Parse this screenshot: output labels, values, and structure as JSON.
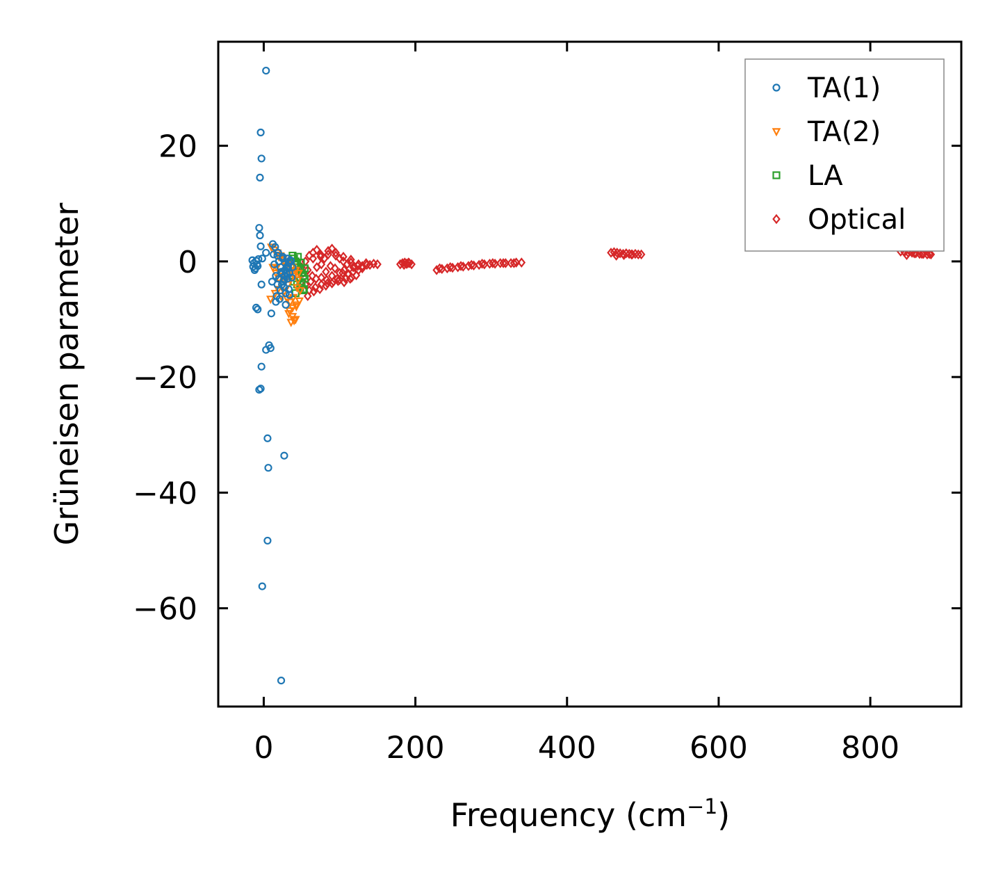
{
  "chart_data": {
    "type": "scatter",
    "title": "",
    "xlabel": "Frequency (cm",
    "xlabel_sup": "−1",
    "xlabel_suffix": ")",
    "ylabel": "Grüneisen parameter",
    "xlim": [
      -60,
      920
    ],
    "ylim": [
      -77,
      38
    ],
    "xticks": [
      0,
      200,
      400,
      600,
      800
    ],
    "xtick_labels": [
      "0",
      "200",
      "400",
      "600",
      "800"
    ],
    "yticks": [
      20,
      0,
      -20,
      -40,
      -60
    ],
    "ytick_labels": [
      "20",
      "0",
      "−20",
      "−40",
      "−60"
    ],
    "grid": false,
    "legend_position": "top-right",
    "series": [
      {
        "name": "TA(1)",
        "marker": "circle",
        "color": "#1f77b4",
        "x": [
          3,
          -4,
          -3,
          -5,
          -6,
          -5,
          -4,
          -2,
          -15,
          -13,
          -10,
          -8,
          -11,
          -7,
          -9,
          -12,
          -14,
          -3,
          12,
          15,
          18,
          20,
          22,
          25,
          28,
          30,
          32,
          35,
          14,
          16,
          20,
          24,
          26,
          30,
          33,
          36,
          18,
          22,
          27,
          31,
          34,
          17,
          21,
          29,
          33,
          37,
          23,
          28,
          32,
          25,
          19,
          13,
          11,
          16,
          24,
          29,
          34,
          38,
          27,
          31,
          10,
          -10,
          -8,
          -3,
          3,
          7,
          9,
          -4,
          -6,
          5,
          6,
          27,
          5,
          -2,
          23,
          3
        ],
        "y": [
          33,
          22.3,
          17.8,
          14.5,
          5.8,
          4.5,
          2.6,
          0.5,
          0.2,
          -0.3,
          0.1,
          -0.8,
          -1.2,
          0.4,
          -0.5,
          -1.5,
          -0.9,
          -4,
          3,
          2.5,
          1,
          0,
          -1,
          0.5,
          -1.5,
          -2,
          -0.8,
          0.2,
          -0.5,
          -2.5,
          -3,
          -2.2,
          -3.5,
          -1,
          -0.3,
          0.1,
          -4,
          -5,
          -4.5,
          -3,
          -2,
          -6,
          -6.5,
          -5.5,
          -4.8,
          -2.8,
          -1.8,
          -2.4,
          -1.2,
          0.8,
          1.5,
          1.2,
          -3.5,
          -7,
          -4,
          -7.5,
          -5.8,
          -1,
          -3.2,
          0.5,
          -9,
          -8,
          -8.3,
          -18.2,
          -15.3,
          -14.5,
          -15,
          -22,
          -22.2,
          -30.6,
          -35.7,
          -33.6,
          -48.3,
          -56.2,
          -72.5,
          1.5
        ]
      },
      {
        "name": "TA(2)",
        "marker": "triangle-down",
        "color": "#ff7f0e",
        "x": [
          10,
          14,
          18,
          22,
          26,
          30,
          34,
          38,
          42,
          46,
          12,
          16,
          20,
          24,
          28,
          32,
          36,
          40,
          44,
          48,
          15,
          19,
          23,
          27,
          31,
          35,
          39,
          43,
          47,
          20,
          25,
          30,
          35,
          40,
          45,
          33,
          38,
          42,
          36,
          40,
          34,
          38,
          43,
          9,
          17
        ],
        "y": [
          2.5,
          2,
          1.5,
          1,
          0.5,
          0,
          -0.5,
          -1,
          -1.5,
          -2,
          -1,
          -2,
          -3,
          -2.5,
          -3.5,
          -4,
          -3,
          -2.5,
          -4.5,
          -5,
          -5.5,
          -4.8,
          -6,
          -5.2,
          -6.5,
          -7,
          -6.2,
          -7.5,
          -6.8,
          0.8,
          0.3,
          -0.8,
          -1.8,
          -2.2,
          -3.2,
          -9,
          -9.5,
          -10,
          -10.5,
          -10.2,
          -8.5,
          -8,
          -7.8,
          -6.5,
          -1
        ]
      },
      {
        "name": "LA",
        "marker": "square",
        "color": "#2ca02c",
        "x": [
          38,
          40,
          42,
          44,
          46,
          48,
          50,
          52,
          54,
          40,
          44,
          48,
          52,
          42,
          46,
          50,
          54,
          45,
          49,
          53
        ],
        "y": [
          1,
          0.5,
          0,
          -0.5,
          -1,
          -1.5,
          -2,
          -2.5,
          -3,
          -3.5,
          -4,
          -4.5,
          -5,
          -5.5,
          -2.2,
          -3.8,
          -1.2,
          0.8,
          -0.2,
          -4.8
        ]
      },
      {
        "name": "Optical",
        "marker": "diamond",
        "color": "#d62728",
        "x": [
          50,
          55,
          60,
          65,
          70,
          75,
          80,
          85,
          90,
          95,
          100,
          105,
          110,
          115,
          120,
          125,
          130,
          135,
          140,
          145,
          150,
          52,
          58,
          64,
          70,
          76,
          82,
          88,
          94,
          100,
          106,
          112,
          118,
          124,
          130,
          136,
          55,
          62,
          69,
          76,
          83,
          90,
          97,
          104,
          111,
          118,
          125,
          60,
          68,
          76,
          84,
          92,
          100,
          108,
          116,
          65,
          75,
          85,
          95,
          105,
          115,
          58,
          66,
          74,
          82,
          90,
          98,
          106,
          114,
          122,
          180,
          183,
          186,
          189,
          192,
          195,
          185,
          188,
          191,
          228,
          235,
          242,
          249,
          256,
          263,
          270,
          277,
          284,
          291,
          298,
          305,
          312,
          319,
          326,
          333,
          340,
          232,
          246,
          260,
          274,
          288,
          302,
          316,
          330,
          458,
          462,
          466,
          470,
          474,
          478,
          482,
          486,
          490,
          494,
          498,
          465,
          475,
          485,
          840,
          845,
          850,
          855,
          860,
          865,
          870,
          875,
          880,
          848,
          858,
          868,
          878
        ],
        "y": [
          -1,
          0,
          1,
          1.5,
          2,
          1.2,
          0.5,
          1.8,
          2.2,
          1,
          0.5,
          0,
          -0.5,
          -0.2,
          -1,
          -0.5,
          -0.8,
          -0.3,
          -0.6,
          -0.4,
          -0.5,
          -2,
          -1.5,
          -2.5,
          -1,
          -0.5,
          -1.8,
          -0.8,
          -1.2,
          -2,
          -1.5,
          -2.2,
          -1,
          -0.8,
          -1.2,
          -0.6,
          -4,
          -3.5,
          -3,
          -2.8,
          -3.2,
          -2.5,
          -3,
          -2,
          -2.2,
          -1.8,
          -1.5,
          -5,
          -4.5,
          -4,
          -3.8,
          -3.5,
          -3.2,
          -3,
          -2.8,
          0.5,
          0.8,
          1.2,
          1.5,
          0.8,
          0.3,
          -6,
          -5.2,
          -4.8,
          -4.2,
          -3.8,
          -3.4,
          -3.6,
          -3,
          -2.4,
          -0.5,
          -0.3,
          -0.2,
          -0.4,
          -0.3,
          -0.5,
          -0.6,
          -0.4,
          -0.2,
          -1.5,
          -1.3,
          -1.2,
          -1.1,
          -1.0,
          -0.9,
          -0.8,
          -0.7,
          -0.6,
          -0.5,
          -0.4,
          -0.4,
          -0.3,
          -0.3,
          -0.3,
          -0.2,
          -0.2,
          -1.2,
          -1.0,
          -0.8,
          -0.6,
          -0.4,
          -0.3,
          -0.3,
          -0.3,
          1.5,
          1.6,
          1.5,
          1.4,
          1.3,
          1.4,
          1.3,
          1.2,
          1.3,
          1.2,
          1.2,
          1.0,
          1.1,
          1.2,
          1.7,
          1.6,
          1.5,
          1.5,
          1.4,
          1.3,
          1.3,
          1.2,
          1.2,
          1.1,
          1.4,
          1.3,
          1.3
        ]
      }
    ]
  }
}
